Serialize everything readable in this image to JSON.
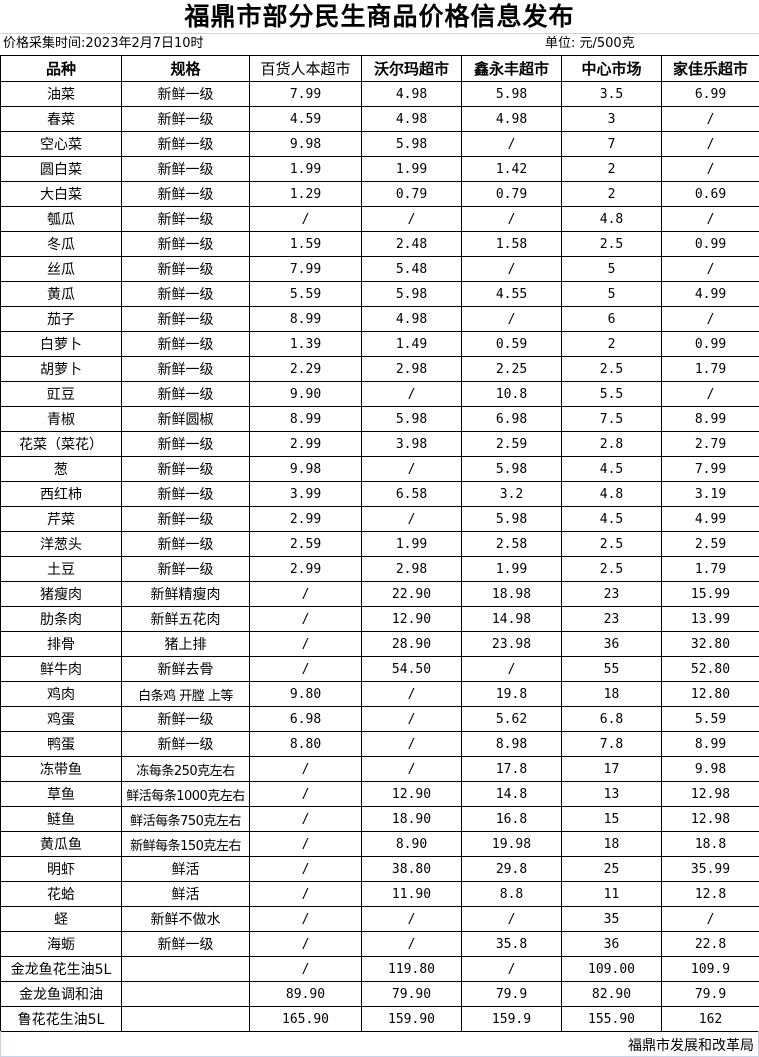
{
  "title": "福鼎市部分民生商品价格信息发布",
  "collect_time": "价格采集时间:2023年2月7日10时",
  "unit": "单位: 元/500克",
  "headers": [
    "品种",
    "规格",
    "百货人本超市",
    "沃尔玛超市",
    "鑫永丰超市",
    "中心市场",
    "家佳乐超市"
  ],
  "rows": [
    [
      "油菜",
      "新鲜一级",
      "7.99",
      "4.98",
      "5.98",
      "3.5",
      "6.99"
    ],
    [
      "春菜",
      "新鲜一级",
      "4.59",
      "4.98",
      "4.98",
      "3",
      "/"
    ],
    [
      "空心菜",
      "新鲜一级",
      "9.98",
      "5.98",
      "/",
      "7",
      "/"
    ],
    [
      "圆白菜",
      "新鲜一级",
      "1.99",
      "1.99",
      "1.42",
      "2",
      "/"
    ],
    [
      "大白菜",
      "新鲜一级",
      "1.29",
      "0.79",
      "0.79",
      "2",
      "0.69"
    ],
    [
      "瓠瓜",
      "新鲜一级",
      "/",
      "/",
      "/",
      "4.8",
      "/"
    ],
    [
      "冬瓜",
      "新鲜一级",
      "1.59",
      "2.48",
      "1.58",
      "2.5",
      "0.99"
    ],
    [
      "丝瓜",
      "新鲜一级",
      "7.99",
      "5.48",
      "/",
      "5",
      "/"
    ],
    [
      "黄瓜",
      "新鲜一级",
      "5.59",
      "5.98",
      "4.55",
      "5",
      "4.99"
    ],
    [
      "茄子",
      "新鲜一级",
      "8.99",
      "4.98",
      "/",
      "6",
      "/"
    ],
    [
      "白萝卜",
      "新鲜一级",
      "1.39",
      "1.49",
      "0.59",
      "2",
      "0.99"
    ],
    [
      "胡萝卜",
      "新鲜一级",
      "2.29",
      "2.98",
      "2.25",
      "2.5",
      "1.79"
    ],
    [
      "豇豆",
      "新鲜一级",
      "9.90",
      "/",
      "10.8",
      "5.5",
      "/"
    ],
    [
      "青椒",
      "新鲜圆椒",
      "8.99",
      "5.98",
      "6.98",
      "7.5",
      "8.99"
    ],
    [
      "花菜（菜花）",
      "新鲜一级",
      "2.99",
      "3.98",
      "2.59",
      "2.8",
      "2.79"
    ],
    [
      "葱",
      "新鲜一级",
      "9.98",
      "/",
      "5.98",
      "4.5",
      "7.99"
    ],
    [
      "西红柿",
      "新鲜一级",
      "3.99",
      "6.58",
      "3.2",
      "4.8",
      "3.19"
    ],
    [
      "芹菜",
      "新鲜一级",
      "2.99",
      "/",
      "5.98",
      "4.5",
      "4.99"
    ],
    [
      "洋葱头",
      "新鲜一级",
      "2.59",
      "1.99",
      "2.58",
      "2.5",
      "2.59"
    ],
    [
      "土豆",
      "新鲜一级",
      "2.99",
      "2.98",
      "1.99",
      "2.5",
      "1.79"
    ],
    [
      "猪瘦肉",
      "新鲜精瘦肉",
      "/",
      "22.90",
      "18.98",
      "23",
      "15.99"
    ],
    [
      "肋条肉",
      "新鲜五花肉",
      "/",
      "12.90",
      "14.98",
      "23",
      "13.99"
    ],
    [
      "排骨",
      "猪上排",
      "/",
      "28.90",
      "23.98",
      "36",
      "32.80"
    ],
    [
      "鲜牛肉",
      "新鲜去骨",
      "/",
      "54.50",
      "/",
      "55",
      "52.80"
    ],
    [
      "鸡肉",
      "白条鸡 开膛 上等",
      "9.80",
      "/",
      "19.8",
      "18",
      "12.80"
    ],
    [
      "鸡蛋",
      "新鲜一级",
      "6.98",
      "/",
      "5.62",
      "6.8",
      "5.59"
    ],
    [
      "鸭蛋",
      "新鲜一级",
      "8.80",
      "/",
      "8.98",
      "7.8",
      "8.99"
    ],
    [
      "冻带鱼",
      "冻每条250克左右",
      "/",
      "/",
      "17.8",
      "17",
      "9.98"
    ],
    [
      "草鱼",
      "鲜活每条1000克左右",
      "/",
      "12.90",
      "14.8",
      "13",
      "12.98"
    ],
    [
      "鲢鱼",
      "鲜活每条750克左右",
      "/",
      "18.90",
      "16.8",
      "15",
      "12.98"
    ],
    [
      "黄瓜鱼",
      "新鲜每条150克左右",
      "/",
      "8.90",
      "19.98",
      "18",
      "18.8"
    ],
    [
      "明虾",
      "鲜活",
      "/",
      "38.80",
      "29.8",
      "25",
      "35.99"
    ],
    [
      "花蛤",
      "鲜活",
      "/",
      "11.90",
      "8.8",
      "11",
      "12.8"
    ],
    [
      "蛏",
      "新鲜不做水",
      "/",
      "/",
      "/",
      "35",
      "/"
    ],
    [
      "海蛎",
      "新鲜一级",
      "/",
      "/",
      "35.8",
      "36",
      "22.8"
    ],
    [
      "金龙鱼花生油5L",
      "",
      "/",
      "119.80",
      "/",
      "109.00",
      "109.9"
    ],
    [
      "金龙鱼调和油",
      "",
      "89.90",
      "79.90",
      "79.9",
      "82.90",
      "79.9"
    ],
    [
      "鲁花花生油5L",
      "",
      "165.90",
      "159.90",
      "159.9",
      "155.90",
      "162"
    ]
  ],
  "footer": "福鼎市发展和改革局"
}
